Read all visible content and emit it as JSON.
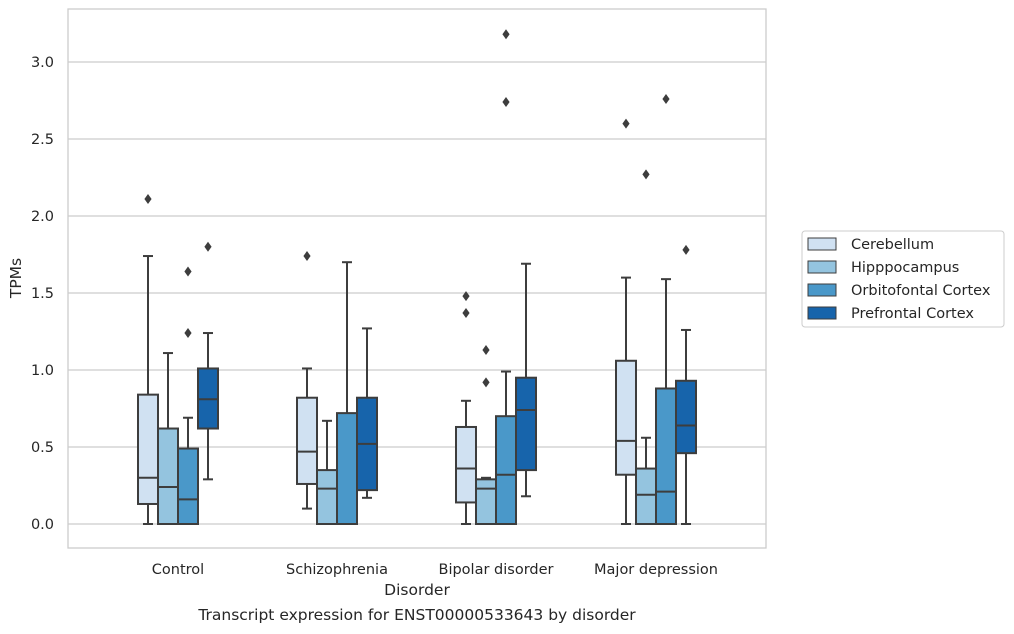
{
  "caption": "Transcript expression for ENST00000533643 by disorder",
  "chart_data": {
    "type": "boxplot",
    "title": "",
    "xlabel": "Disorder",
    "ylabel": "TPMs",
    "ylim": [
      -0.15,
      3.35
    ],
    "yticks": [
      0.0,
      0.5,
      1.0,
      1.5,
      2.0,
      2.5,
      3.0
    ],
    "ytick_labels": [
      "0.0",
      "0.5",
      "1.0",
      "1.5",
      "2.0",
      "2.5",
      "3.0"
    ],
    "grid": "horizontal",
    "legend_position": "right",
    "categories": [
      "Control",
      "Schizophrenia",
      "Bipolar disorder",
      "Major depression"
    ],
    "series": [
      {
        "name": "Cerebellum",
        "color": "#d0e1f2",
        "boxes": [
          {
            "whislo": 0.0,
            "q1": 0.13,
            "med": 0.3,
            "q3": 0.84,
            "whishi": 1.74,
            "fliers": [
              2.11
            ]
          },
          {
            "whislo": 0.1,
            "q1": 0.26,
            "med": 0.47,
            "q3": 0.82,
            "whishi": 1.01,
            "fliers": [
              1.74
            ]
          },
          {
            "whislo": 0.0,
            "q1": 0.14,
            "med": 0.36,
            "q3": 0.63,
            "whishi": 0.8,
            "fliers": [
              1.37,
              1.48
            ]
          },
          {
            "whislo": 0.0,
            "q1": 0.32,
            "med": 0.54,
            "q3": 1.06,
            "whishi": 1.6,
            "fliers": [
              2.6
            ]
          }
        ]
      },
      {
        "name": "Hipppocampus",
        "color": "#94c4df",
        "boxes": [
          {
            "whislo": 0.0,
            "q1": 0.0,
            "med": 0.24,
            "q3": 0.62,
            "whishi": 1.11,
            "fliers": []
          },
          {
            "whislo": 0.0,
            "q1": 0.0,
            "med": 0.23,
            "q3": 0.35,
            "whishi": 0.67,
            "fliers": []
          },
          {
            "whislo": 0.0,
            "q1": 0.0,
            "med": 0.23,
            "q3": 0.29,
            "whishi": 0.3,
            "fliers": [
              0.92,
              1.13
            ]
          },
          {
            "whislo": 0.0,
            "q1": 0.0,
            "med": 0.19,
            "q3": 0.36,
            "whishi": 0.56,
            "fliers": [
              2.27
            ]
          }
        ]
      },
      {
        "name": "Orbitofontal Cortex",
        "color": "#4a98c9",
        "boxes": [
          {
            "whislo": 0.0,
            "q1": 0.0,
            "med": 0.16,
            "q3": 0.49,
            "whishi": 0.69,
            "fliers": [
              1.24,
              1.64
            ]
          },
          {
            "whislo": 0.0,
            "q1": 0.0,
            "med": 0.0,
            "q3": 0.72,
            "whishi": 1.7,
            "fliers": []
          },
          {
            "whislo": 0.0,
            "q1": 0.0,
            "med": 0.32,
            "q3": 0.7,
            "whishi": 0.99,
            "fliers": [
              2.74,
              3.18
            ]
          },
          {
            "whislo": 0.0,
            "q1": 0.0,
            "med": 0.21,
            "q3": 0.88,
            "whishi": 1.59,
            "fliers": [
              2.76
            ]
          }
        ]
      },
      {
        "name": "Prefrontal Cortex",
        "color": "#1764ab",
        "boxes": [
          {
            "whislo": 0.29,
            "q1": 0.62,
            "med": 0.81,
            "q3": 1.01,
            "whishi": 1.24,
            "fliers": [
              1.8
            ]
          },
          {
            "whislo": 0.17,
            "q1": 0.22,
            "med": 0.52,
            "q3": 0.82,
            "whishi": 1.27,
            "fliers": []
          },
          {
            "whislo": 0.18,
            "q1": 0.35,
            "med": 0.74,
            "q3": 0.95,
            "whishi": 1.69,
            "fliers": []
          },
          {
            "whislo": 0.0,
            "q1": 0.46,
            "med": 0.64,
            "q3": 0.93,
            "whishi": 1.26,
            "fliers": [
              1.78
            ]
          }
        ]
      }
    ]
  }
}
